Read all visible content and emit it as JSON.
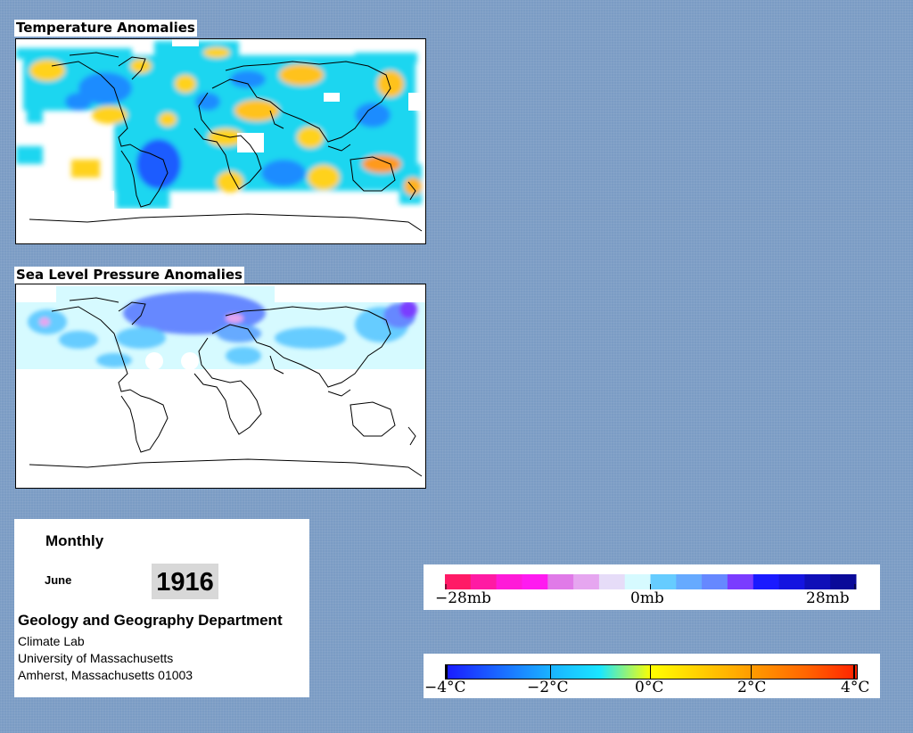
{
  "temperature_map": {
    "title": "Temperature Anomalies"
  },
  "pressure_map": {
    "title": "Sea Level Pressure Anomalies"
  },
  "info": {
    "period": "Monthly",
    "month": "June",
    "year": "1916",
    "department": "Geology and Geography Department",
    "lab": "Climate Lab",
    "university": "University of Massachusetts",
    "address": "Amherst, Massachusetts 01003"
  },
  "pressure_legend": {
    "labels": [
      "−28mb",
      "0mb",
      "28mb"
    ],
    "colors": [
      "#ff1a66",
      "#ff1aa3",
      "#ff1ad8",
      "#ff1af0",
      "#e07ae8",
      "#e6a6f0",
      "#e6dcf8",
      "#d6faff",
      "#66ccff",
      "#66aaff",
      "#6688ff",
      "#7a3cff",
      "#1a1aff",
      "#1414e0",
      "#0f0fb8",
      "#0a0a99"
    ]
  },
  "temperature_legend": {
    "labels": [
      "−4°C",
      "−2°C",
      "0°C",
      "2°C",
      "4°C"
    ],
    "gradient": [
      "#1a1aff",
      "#1a66ff",
      "#1ab0ff",
      "#1ae6ff",
      "#ffff00",
      "#ffcc00",
      "#ff9900",
      "#ff6600",
      "#ff2200"
    ]
  }
}
